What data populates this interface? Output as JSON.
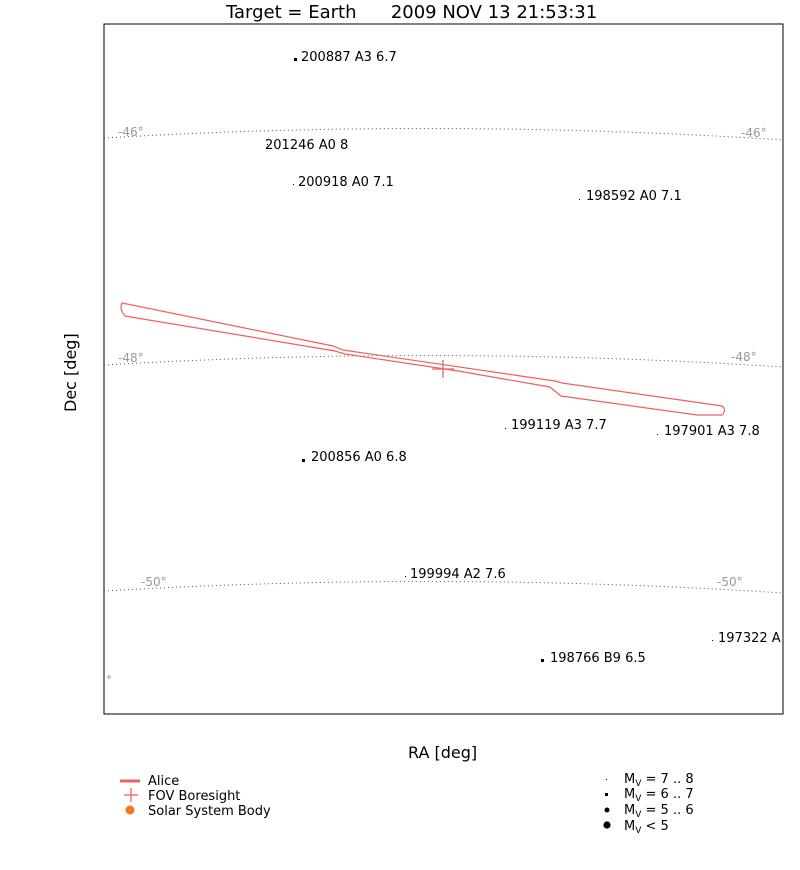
{
  "chart_data": {
    "type": "scatter",
    "title": "Target = Earth      2009 NOV 13 21:53:31",
    "xlabel": "RA [deg]",
    "ylabel": "Dec [deg]",
    "grid": true,
    "dec_gridlines": [
      {
        "label": "-46°",
        "dec": -46
      },
      {
        "label": "-48°",
        "dec": -48
      },
      {
        "label": "-50°",
        "dec": -50
      }
    ],
    "stars": [
      {
        "label": "200887 A3 6.7",
        "mag_class": "6-7"
      },
      {
        "label": "201246 A0 8",
        "mag_class": "7-8"
      },
      {
        "label": "200918 A0 7.1",
        "mag_class": "7-8"
      },
      {
        "label": "198592 A0 7.1",
        "mag_class": "7-8"
      },
      {
        "label": "199119 A3 7.7",
        "mag_class": "7-8"
      },
      {
        "label": "197901 A3 7.8",
        "mag_class": "7-8"
      },
      {
        "label": "200856 A0 6.8",
        "mag_class": "6-7"
      },
      {
        "label": "199994 A2 7.6",
        "mag_class": "7-8"
      },
      {
        "label": "197322 A",
        "mag_class": "7-8"
      },
      {
        "label": "198766 B9 6.5",
        "mag_class": "6-7"
      }
    ],
    "instrument": {
      "name": "Alice",
      "boresight": "FOV Boresight"
    },
    "legend_placement": "bottom"
  },
  "legend": {
    "alice": "Alice",
    "boresight": "FOV Boresight",
    "ssb": "Solar System Body",
    "mag": [
      {
        "main": "M",
        "sub": "V",
        "rest": " = 7 .. 8"
      },
      {
        "main": "M",
        "sub": "V",
        "rest": " = 6 .. 7"
      },
      {
        "main": "M",
        "sub": "V",
        "rest": " = 5 .. 6"
      },
      {
        "main": "M",
        "sub": "V",
        "rest": " < 5"
      }
    ]
  },
  "colors": {
    "fov": "#f06060",
    "ssb": "#f07818",
    "grid": "#555555",
    "grid_label": "#9a9a9a"
  }
}
